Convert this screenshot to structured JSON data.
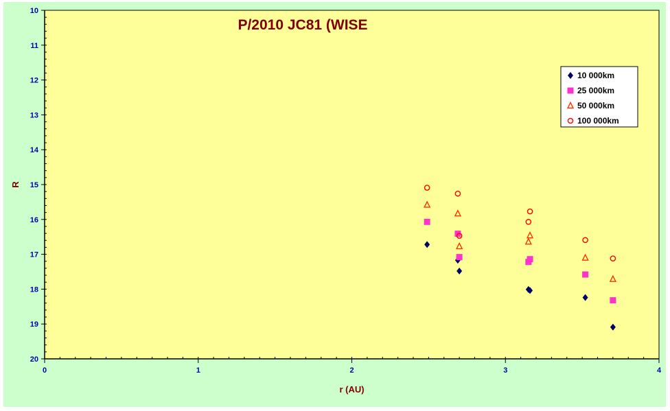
{
  "chart_data": {
    "type": "scatter",
    "title": "P/2010 JC81 (WISE",
    "xlabel": "r (AU)",
    "ylabel": "R",
    "xlim": [
      0,
      4
    ],
    "ylim": [
      10,
      20
    ],
    "y_reversed": true,
    "x_ticks": [
      "0",
      "1",
      "2",
      "3",
      "4"
    ],
    "y_ticks": [
      "10",
      "11",
      "12",
      "13",
      "14",
      "15",
      "16",
      "17",
      "18",
      "19",
      "20"
    ],
    "grid": false,
    "legend_position": "top-right",
    "plot_background": "#ffff99",
    "frame_background": "#ccffcc",
    "series": [
      {
        "name": "10 000km",
        "marker": "diamond",
        "color": "#000066",
        "points": [
          [
            2.49,
            16.72
          ],
          [
            2.69,
            17.17
          ],
          [
            2.7,
            17.48
          ],
          [
            3.15,
            18.01
          ],
          [
            3.16,
            18.04
          ],
          [
            3.52,
            18.24
          ],
          [
            3.7,
            19.09
          ]
        ]
      },
      {
        "name": "25 000km",
        "marker": "square",
        "color": "#ff33cc",
        "points": [
          [
            2.49,
            16.07
          ],
          [
            2.69,
            16.41
          ],
          [
            2.7,
            17.08
          ],
          [
            3.15,
            17.22
          ],
          [
            3.16,
            17.14
          ],
          [
            3.52,
            17.58
          ],
          [
            3.7,
            18.32
          ]
        ]
      },
      {
        "name": "50 000km",
        "marker": "triangle",
        "color": "#ff3300",
        "points": [
          [
            2.49,
            15.58
          ],
          [
            2.69,
            15.83
          ],
          [
            2.7,
            16.77
          ],
          [
            3.15,
            16.64
          ],
          [
            3.16,
            16.46
          ],
          [
            3.52,
            17.1
          ],
          [
            3.7,
            17.71
          ]
        ]
      },
      {
        "name": "100 000km",
        "marker": "circle",
        "color": "#ff0000",
        "points": [
          [
            2.49,
            15.09
          ],
          [
            2.69,
            15.26
          ],
          [
            2.7,
            16.47
          ],
          [
            3.15,
            16.07
          ],
          [
            3.16,
            15.77
          ],
          [
            3.52,
            16.59
          ],
          [
            3.7,
            17.12
          ]
        ]
      }
    ]
  }
}
